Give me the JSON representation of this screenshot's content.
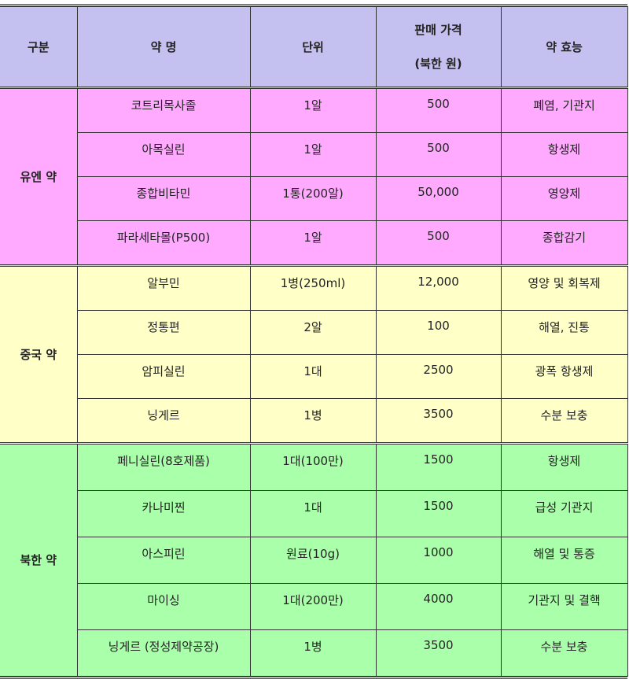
{
  "headers": {
    "category": "구분",
    "name": "약 명",
    "unit": "단위",
    "price_line1": "판매 가격",
    "price_line2": "(북한 원)",
    "effect": "약 효능"
  },
  "colors": {
    "header": "#c4c0ef",
    "un": "#ffaaff",
    "china": "#ffffc8",
    "nk": "#aaffaa"
  },
  "groups": [
    {
      "label": "유엔 약",
      "rows": [
        {
          "name": "코트리목사졸",
          "unit": "1알",
          "price": "500",
          "effect": "폐염, 기관지"
        },
        {
          "name": "아목실린",
          "unit": "1알",
          "price": "500",
          "effect": "항생제"
        },
        {
          "name": "종합비타민",
          "unit": "1통(200알)",
          "price": "50,000",
          "effect": "영양제"
        },
        {
          "name": "파라세타몰(P500)",
          "unit": "1알",
          "price": "500",
          "effect": "종합감기"
        }
      ]
    },
    {
      "label": "중국 약",
      "rows": [
        {
          "name": "알부민",
          "unit": "1병(250ml)",
          "price": "12,000",
          "effect": "영양 및 회복제"
        },
        {
          "name": "정통편",
          "unit": "2알",
          "price": "100",
          "effect": "해열, 진통"
        },
        {
          "name": "암피실린",
          "unit": "1대",
          "price": "2500",
          "effect": "광폭 항생제"
        },
        {
          "name": "닝게르",
          "unit": "1병",
          "price": "3500",
          "effect": "수분 보충"
        }
      ]
    },
    {
      "label": "북한 약",
      "rows": [
        {
          "name": "페니실린(8호제품)",
          "unit": "1대(100만)",
          "price": "1500",
          "effect": "항생제"
        },
        {
          "name": "카나미찐",
          "unit": "1대",
          "price": "1500",
          "effect": "급성 기관지"
        },
        {
          "name": "아스피린",
          "unit": "원료(10g)",
          "price": "1000",
          "effect": "해열 및 통증"
        },
        {
          "name": "마이싱",
          "unit": "1대(200만)",
          "price": "4000",
          "effect": "기관지 및 결핵"
        },
        {
          "name": "닝게르 (정성제약공장)",
          "unit": "1병",
          "price": "3500",
          "effect": "수분 보충"
        }
      ]
    }
  ]
}
